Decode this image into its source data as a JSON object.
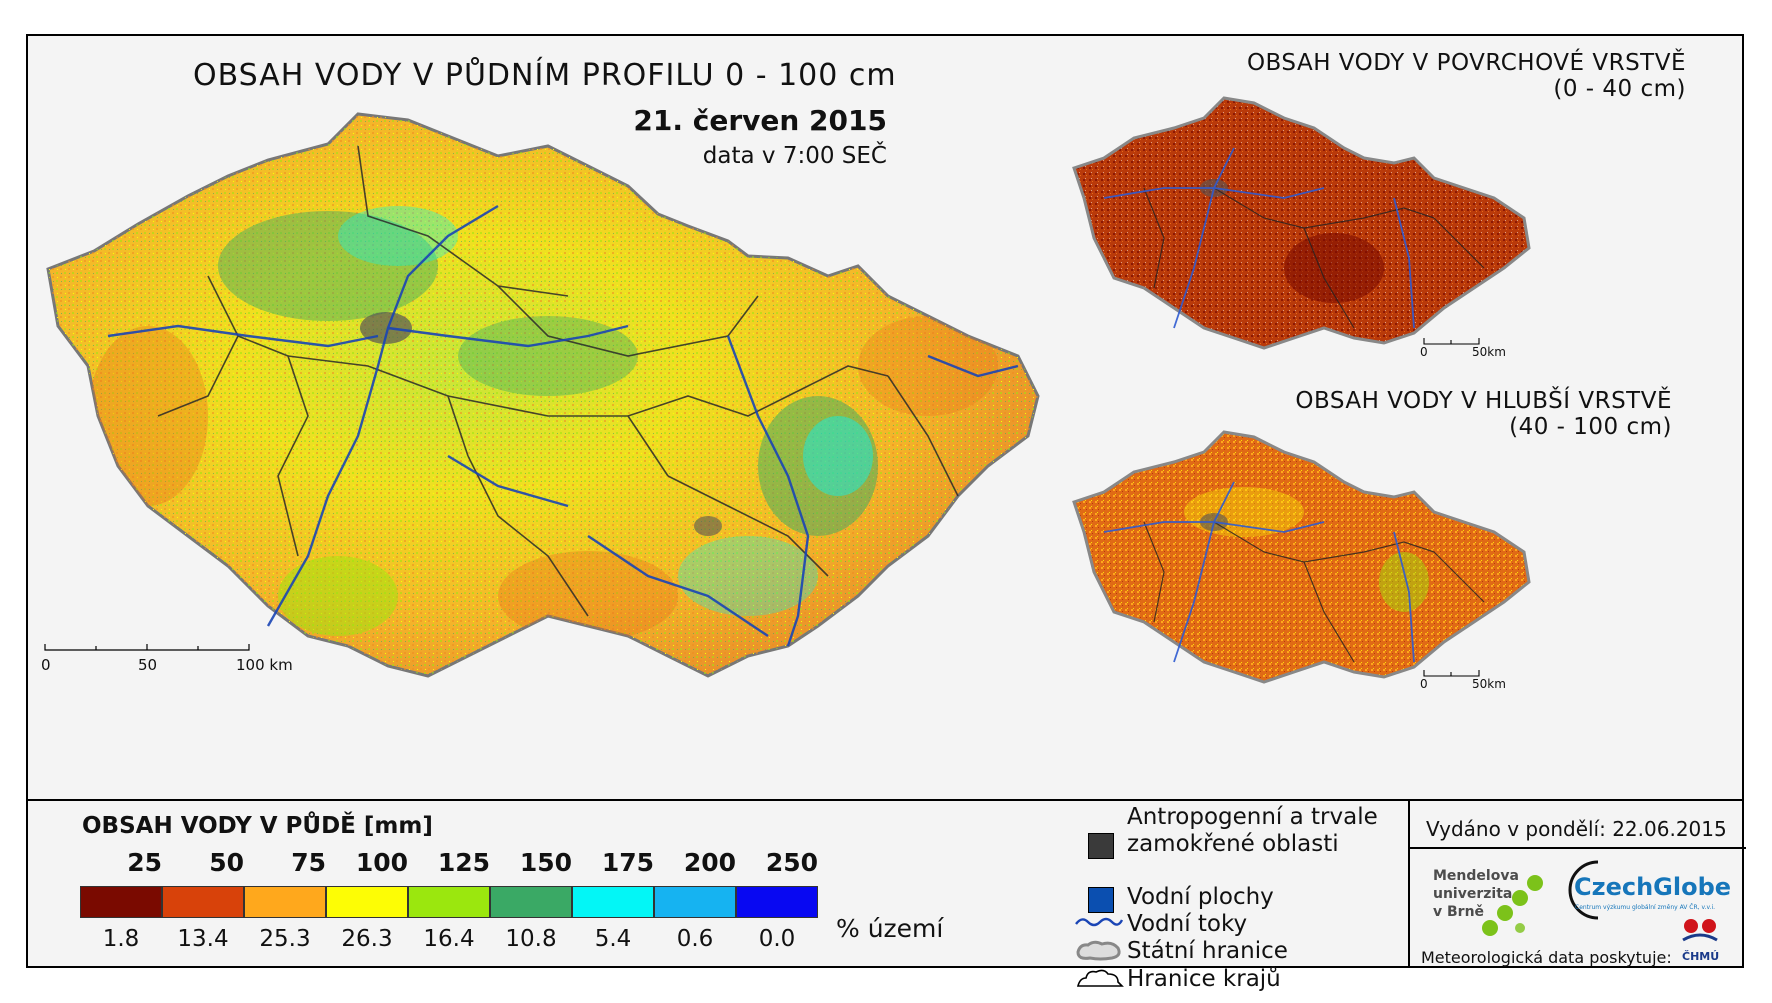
{
  "main_map": {
    "title": "OBSAH VODY V PŮDNÍM PROFILU 0 - 100 cm",
    "date": "21. červen 2015",
    "subtitle": "data v 7:00 SEČ",
    "scale": [
      "0",
      "50",
      "100 km"
    ]
  },
  "inset_top": {
    "title_line1": "OBSAH VODY V POVRCHOVÉ VRSTVĚ",
    "title_line2": "(0 - 40 cm)",
    "scale": [
      "0",
      "50km"
    ]
  },
  "inset_bottom": {
    "title_line1": "OBSAH VODY V HLUBŠÍ VRSTVĚ",
    "title_line2": "(40 - 100 cm)",
    "scale": [
      "0",
      "50km"
    ]
  },
  "legend": {
    "title": "OBSAH VODY V PŮDĚ [mm]",
    "thresholds": [
      "25",
      "50",
      "75",
      "100",
      "125",
      "150",
      "175",
      "200",
      "250"
    ],
    "classes": [
      {
        "color": "#7a0a00",
        "percent": "1.8"
      },
      {
        "color": "#d8420a",
        "percent": "13.4"
      },
      {
        "color": "#ffa81c",
        "percent": "25.3"
      },
      {
        "color": "#fdfd05",
        "percent": "26.3"
      },
      {
        "color": "#9be70e",
        "percent": "16.4"
      },
      {
        "color": "#3aa965",
        "percent": "10.8"
      },
      {
        "color": "#03f6f6",
        "percent": "5.4"
      },
      {
        "color": "#16b3f1",
        "percent": "0.6"
      },
      {
        "color": "#0808f2",
        "percent": "0.0"
      }
    ],
    "unit": "% území"
  },
  "key": {
    "anthropogenic_line1": "Antropogenní a trvale",
    "anthropogenic_line2": "zamokřené oblasti",
    "water_bodies": "Vodní plochy",
    "rivers": "Vodní toky",
    "state_border": "Státní hranice",
    "region_border": "Hranice krajů",
    "colors": {
      "anthropogenic": "#3a3a3a",
      "water_bodies": "#0b4fb0",
      "rivers": "#1a45b5"
    }
  },
  "issued": "Vydáno v pondělí: 22.06.2015",
  "logos": {
    "mendel_line1": "Mendelova",
    "mendel_line2": "univerzita",
    "mendel_line3": "v Brně",
    "czechglobe": "CzechGlobe",
    "czechglobe_sub": "Centrum výzkumu globální změny AV ČR, v.v.i.",
    "chmu": "ČHMÚ",
    "credit": "Meteorologická data poskytuje:"
  }
}
